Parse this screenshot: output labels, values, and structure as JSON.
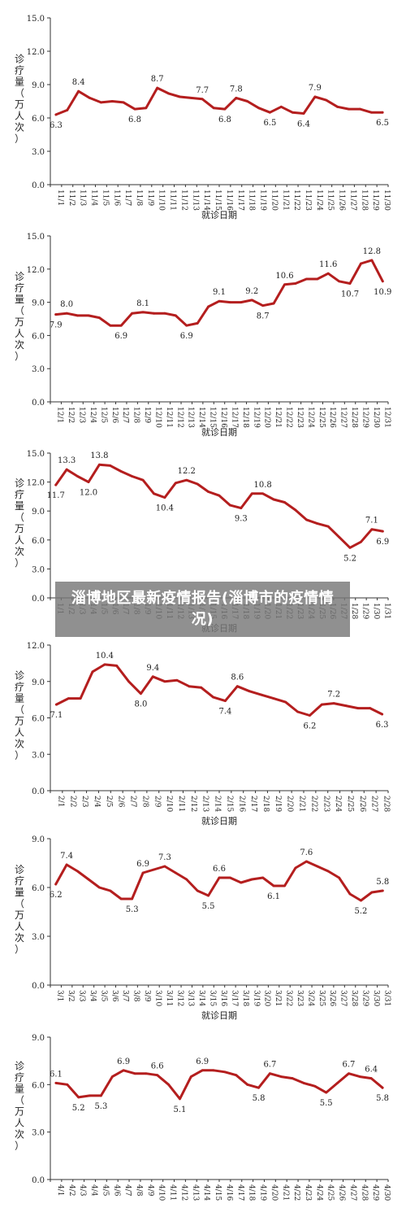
{
  "overlay_title": "淄博地区最新疫情报告(淄博市的疫情情况)",
  "colors": {
    "line": "#b41e1e",
    "axis": "#333333",
    "text": "#222222"
  },
  "chart_data": [
    {
      "type": "line",
      "ylabel": "诊疗量（万人次）",
      "xlabel": "就诊日期",
      "ylim": [
        0,
        15
      ],
      "yticks": [
        "0.0",
        "3.0",
        "6.0",
        "9.0",
        "12.0",
        "15.0"
      ],
      "categories": [
        "11/1",
        "11/2",
        "11/3",
        "11/4",
        "11/5",
        "11/6",
        "11/7",
        "11/8",
        "11/9",
        "11/10",
        "11/11",
        "11/12",
        "11/13",
        "11/14",
        "11/15",
        "11/16",
        "11/17",
        "11/18",
        "11/19",
        "11/20",
        "11/21",
        "11/22",
        "11/23",
        "11/24",
        "11/25",
        "11/26",
        "11/27",
        "11/28",
        "11/29",
        "11/30"
      ],
      "values": [
        6.3,
        6.7,
        8.4,
        7.8,
        7.4,
        7.5,
        7.4,
        6.8,
        6.9,
        8.7,
        8.2,
        7.9,
        7.8,
        7.7,
        6.9,
        6.8,
        7.8,
        7.5,
        6.9,
        6.5,
        7.0,
        6.5,
        6.4,
        7.9,
        7.6,
        7.0,
        6.8,
        6.8,
        6.5,
        6.5
      ],
      "labels": [
        {
          "i": 0,
          "text": "6.3",
          "pos": "below"
        },
        {
          "i": 2,
          "text": "8.4",
          "pos": "above"
        },
        {
          "i": 7,
          "text": "6.8",
          "pos": "below"
        },
        {
          "i": 9,
          "text": "8.7",
          "pos": "above"
        },
        {
          "i": 13,
          "text": "7.7",
          "pos": "above"
        },
        {
          "i": 15,
          "text": "6.8",
          "pos": "below"
        },
        {
          "i": 16,
          "text": "7.8",
          "pos": "above"
        },
        {
          "i": 19,
          "text": "6.5",
          "pos": "below"
        },
        {
          "i": 22,
          "text": "6.4",
          "pos": "below"
        },
        {
          "i": 23,
          "text": "7.9",
          "pos": "above"
        },
        {
          "i": 29,
          "text": "6.5",
          "pos": "below"
        }
      ]
    },
    {
      "type": "line",
      "ylabel": "诊疗量（万人次）",
      "xlabel": "就诊日期",
      "ylim": [
        0,
        15
      ],
      "yticks": [
        "0.0",
        "3.0",
        "6.0",
        "9.0",
        "12.0",
        "15.0"
      ],
      "categories": [
        "12/1",
        "12/2",
        "12/3",
        "12/4",
        "12/5",
        "12/6",
        "12/7",
        "12/8",
        "12/9",
        "12/10",
        "12/11",
        "12/12",
        "12/13",
        "12/14",
        "12/15",
        "12/16",
        "12/17",
        "12/18",
        "12/19",
        "12/20",
        "12/21",
        "12/22",
        "12/23",
        "12/24",
        "12/25",
        "12/26",
        "12/27",
        "12/28",
        "12/29",
        "12/30",
        "12/31"
      ],
      "values": [
        7.9,
        8.0,
        7.8,
        7.8,
        7.6,
        6.9,
        6.9,
        8.0,
        8.1,
        8.0,
        8.0,
        7.8,
        6.9,
        7.1,
        8.6,
        9.1,
        9.0,
        9.0,
        9.2,
        8.7,
        8.9,
        10.6,
        10.7,
        11.1,
        11.1,
        11.6,
        10.9,
        10.7,
        12.5,
        12.8,
        10.9
      ],
      "labels": [
        {
          "i": 0,
          "text": "7.9",
          "pos": "below"
        },
        {
          "i": 1,
          "text": "8.0",
          "pos": "above"
        },
        {
          "i": 6,
          "text": "6.9",
          "pos": "below"
        },
        {
          "i": 8,
          "text": "8.1",
          "pos": "above"
        },
        {
          "i": 12,
          "text": "6.9",
          "pos": "below"
        },
        {
          "i": 15,
          "text": "9.1",
          "pos": "above"
        },
        {
          "i": 18,
          "text": "9.2",
          "pos": "above"
        },
        {
          "i": 19,
          "text": "8.7",
          "pos": "below"
        },
        {
          "i": 21,
          "text": "10.6",
          "pos": "above"
        },
        {
          "i": 25,
          "text": "11.6",
          "pos": "above"
        },
        {
          "i": 27,
          "text": "10.7",
          "pos": "below"
        },
        {
          "i": 29,
          "text": "12.8",
          "pos": "above"
        },
        {
          "i": 30,
          "text": "10.9",
          "pos": "below"
        }
      ]
    },
    {
      "type": "line",
      "ylabel": "诊疗量（万人次）",
      "xlabel": "就诊日期",
      "ylim": [
        0,
        15
      ],
      "yticks": [
        "0.0",
        "3.0",
        "6.0",
        "9.0",
        "12.0",
        "15.0"
      ],
      "categories": [
        "1/1",
        "1/2",
        "1/3",
        "1/4",
        "1/5",
        "1/6",
        "1/7",
        "1/8",
        "1/9",
        "1/10",
        "1/11",
        "1/12",
        "1/13",
        "1/14",
        "1/15",
        "1/16",
        "1/17",
        "1/18",
        "1/19",
        "1/20",
        "1/21",
        "1/22",
        "1/23",
        "1/24",
        "1/25",
        "1/26",
        "1/27",
        "1/28",
        "1/29",
        "1/30",
        "1/31"
      ],
      "values": [
        11.7,
        13.3,
        12.6,
        12.0,
        13.8,
        13.7,
        13.1,
        12.6,
        12.2,
        10.8,
        10.4,
        11.9,
        12.2,
        11.8,
        11.0,
        10.6,
        9.6,
        9.3,
        10.8,
        10.8,
        10.2,
        9.9,
        9.1,
        8.1,
        7.7,
        7.4,
        6.3,
        5.2,
        5.8,
        7.1,
        6.9
      ],
      "labels": [
        {
          "i": 0,
          "text": "11.7",
          "pos": "below"
        },
        {
          "i": 1,
          "text": "13.3",
          "pos": "above"
        },
        {
          "i": 3,
          "text": "12.0",
          "pos": "below"
        },
        {
          "i": 4,
          "text": "13.8",
          "pos": "above"
        },
        {
          "i": 10,
          "text": "10.4",
          "pos": "below"
        },
        {
          "i": 12,
          "text": "12.2",
          "pos": "above"
        },
        {
          "i": 17,
          "text": "9.3",
          "pos": "below"
        },
        {
          "i": 19,
          "text": "10.8",
          "pos": "above"
        },
        {
          "i": 27,
          "text": "5.2",
          "pos": "below"
        },
        {
          "i": 29,
          "text": "7.1",
          "pos": "above"
        },
        {
          "i": 30,
          "text": "6.9",
          "pos": "below"
        }
      ]
    },
    {
      "type": "line",
      "ylabel": "诊疗量（万人次）",
      "xlabel": "就诊日期",
      "ylim": [
        0,
        12
      ],
      "yticks": [
        "0.0",
        "3.0",
        "6.0",
        "9.0",
        "12.0"
      ],
      "categories": [
        "2/1",
        "2/2",
        "2/3",
        "2/4",
        "2/5",
        "2/6",
        "2/7",
        "2/8",
        "2/9",
        "2/10",
        "2/11",
        "2/12",
        "2/13",
        "2/14",
        "2/15",
        "2/16",
        "2/17",
        "2/18",
        "2/19",
        "2/20",
        "2/21",
        "2/22",
        "2/23",
        "2/24",
        "2/25",
        "2/26",
        "2/27",
        "2/28"
      ],
      "values": [
        7.1,
        7.6,
        7.6,
        9.8,
        10.4,
        10.3,
        9.0,
        8.0,
        9.4,
        9.0,
        9.1,
        8.6,
        8.5,
        7.7,
        7.4,
        8.6,
        8.2,
        7.9,
        7.6,
        7.3,
        6.5,
        6.2,
        7.1,
        7.2,
        7.0,
        6.8,
        6.8,
        6.3
      ],
      "labels": [
        {
          "i": 0,
          "text": "7.1",
          "pos": "below"
        },
        {
          "i": 4,
          "text": "10.4",
          "pos": "above"
        },
        {
          "i": 7,
          "text": "8.0",
          "pos": "below"
        },
        {
          "i": 8,
          "text": "9.4",
          "pos": "above"
        },
        {
          "i": 14,
          "text": "7.4",
          "pos": "below"
        },
        {
          "i": 15,
          "text": "8.6",
          "pos": "above"
        },
        {
          "i": 21,
          "text": "6.2",
          "pos": "below"
        },
        {
          "i": 23,
          "text": "7.2",
          "pos": "above"
        },
        {
          "i": 27,
          "text": "6.3",
          "pos": "below"
        }
      ]
    },
    {
      "type": "line",
      "ylabel": "诊疗量（万人次）",
      "xlabel": "就诊日期",
      "ylim": [
        0,
        9
      ],
      "yticks": [
        "0.0",
        "3.0",
        "6.0",
        "9.0"
      ],
      "categories": [
        "3/1",
        "3/2",
        "3/3",
        "3/4",
        "3/5",
        "3/6",
        "3/7",
        "3/8",
        "3/9",
        "3/10",
        "3/11",
        "3/12",
        "3/13",
        "3/14",
        "3/15",
        "3/16",
        "3/17",
        "3/18",
        "3/19",
        "3/20",
        "3/21",
        "3/22",
        "3/23",
        "3/24",
        "3/25",
        "3/26",
        "3/27",
        "3/28",
        "3/29",
        "3/30",
        "3/31"
      ],
      "values": [
        6.2,
        7.4,
        7.0,
        6.5,
        6.0,
        5.8,
        5.3,
        5.3,
        6.9,
        7.1,
        7.3,
        6.9,
        6.5,
        5.8,
        5.5,
        6.6,
        6.6,
        6.3,
        6.5,
        6.6,
        6.1,
        6.1,
        7.2,
        7.6,
        7.3,
        7.0,
        6.6,
        5.6,
        5.2,
        5.7,
        5.8
      ],
      "labels": [
        {
          "i": 0,
          "text": "6.2",
          "pos": "below"
        },
        {
          "i": 1,
          "text": "7.4",
          "pos": "above"
        },
        {
          "i": 7,
          "text": "5.3",
          "pos": "below"
        },
        {
          "i": 8,
          "text": "6.9",
          "pos": "above"
        },
        {
          "i": 10,
          "text": "7.3",
          "pos": "above"
        },
        {
          "i": 14,
          "text": "5.5",
          "pos": "below"
        },
        {
          "i": 15,
          "text": "6.6",
          "pos": "above"
        },
        {
          "i": 20,
          "text": "6.1",
          "pos": "below"
        },
        {
          "i": 23,
          "text": "7.6",
          "pos": "above"
        },
        {
          "i": 28,
          "text": "5.2",
          "pos": "below"
        },
        {
          "i": 30,
          "text": "5.8",
          "pos": "above"
        }
      ]
    },
    {
      "type": "line",
      "ylabel": "诊疗量（万人次）",
      "xlabel": "",
      "ylim": [
        0,
        9
      ],
      "yticks": [
        "0.0",
        "3.0",
        "6.0",
        "9.0"
      ],
      "categories": [
        "4/1",
        "4/2",
        "4/3",
        "4/4",
        "4/5",
        "4/6",
        "4/7",
        "4/8",
        "4/9",
        "4/10",
        "4/11",
        "4/12",
        "4/13",
        "4/14",
        "4/15",
        "4/16",
        "4/17",
        "4/18",
        "4/19",
        "4/20",
        "4/21",
        "4/22",
        "4/23",
        "4/24",
        "4/25",
        "4/26",
        "4/27",
        "4/28",
        "4/29",
        "4/30"
      ],
      "values": [
        6.1,
        6.0,
        5.2,
        5.3,
        5.3,
        6.5,
        6.9,
        6.7,
        6.7,
        6.6,
        6.0,
        5.1,
        6.5,
        6.9,
        6.9,
        6.8,
        6.6,
        6.0,
        5.8,
        6.7,
        6.5,
        6.4,
        6.1,
        5.9,
        5.5,
        6.1,
        6.7,
        6.5,
        6.4,
        5.8
      ],
      "labels": [
        {
          "i": 0,
          "text": "6.1",
          "pos": "above"
        },
        {
          "i": 2,
          "text": "5.2",
          "pos": "below"
        },
        {
          "i": 4,
          "text": "5.3",
          "pos": "below"
        },
        {
          "i": 6,
          "text": "6.9",
          "pos": "above"
        },
        {
          "i": 9,
          "text": "6.6",
          "pos": "above"
        },
        {
          "i": 11,
          "text": "5.1",
          "pos": "below"
        },
        {
          "i": 13,
          "text": "6.9",
          "pos": "above"
        },
        {
          "i": 18,
          "text": "5.8",
          "pos": "below"
        },
        {
          "i": 19,
          "text": "6.7",
          "pos": "above"
        },
        {
          "i": 24,
          "text": "5.5",
          "pos": "below"
        },
        {
          "i": 26,
          "text": "6.7",
          "pos": "above"
        },
        {
          "i": 28,
          "text": "6.4",
          "pos": "above"
        },
        {
          "i": 29,
          "text": "5.8",
          "pos": "below"
        }
      ]
    }
  ]
}
